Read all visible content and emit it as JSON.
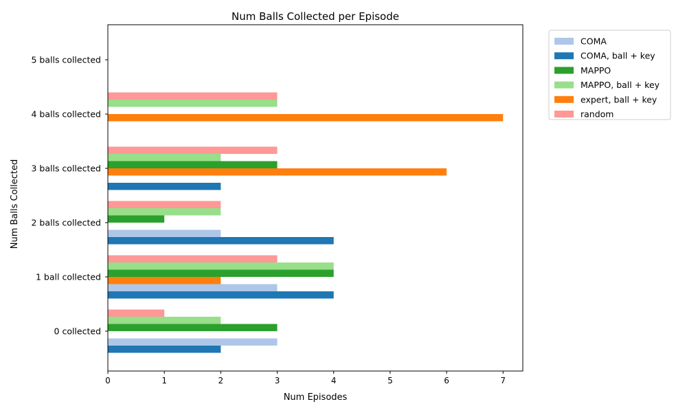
{
  "chart_data": {
    "type": "bar",
    "orientation": "horizontal",
    "title": "Num Balls Collected per Episode",
    "xlabel": "Num Episodes",
    "ylabel": "Num Balls Collected",
    "xlim": [
      0,
      7.35
    ],
    "xticks": [
      0,
      1,
      2,
      3,
      4,
      5,
      6,
      7
    ],
    "grid": false,
    "legend_position": "outside top-right",
    "categories": [
      "0 collected",
      "1 ball collected",
      "2 balls collected",
      "3 balls collected",
      "4 balls collected",
      "5 balls collected"
    ],
    "series": [
      {
        "name": "COMA, ball + key",
        "color": "#1f77b4",
        "values": [
          2,
          4,
          4,
          2,
          0,
          0
        ]
      },
      {
        "name": "COMA",
        "color": "#aec7e8",
        "values": [
          3,
          3,
          2,
          0,
          0,
          0
        ]
      },
      {
        "name": "expert, ball + key",
        "color": "#ff7f0e",
        "values": [
          0,
          2,
          0,
          6,
          7,
          0
        ]
      },
      {
        "name": "MAPPO",
        "color": "#2ca02c",
        "values": [
          3,
          4,
          1,
          3,
          0,
          0
        ]
      },
      {
        "name": "MAPPO, ball + key",
        "color": "#98df8a",
        "values": [
          2,
          4,
          2,
          2,
          3,
          0
        ]
      },
      {
        "name": "random",
        "color": "#ff9896",
        "values": [
          1,
          3,
          2,
          3,
          3,
          0
        ]
      }
    ],
    "legend_order": [
      "COMA",
      "COMA, ball + key",
      "MAPPO",
      "MAPPO, ball + key",
      "expert, ball + key",
      "random"
    ]
  }
}
